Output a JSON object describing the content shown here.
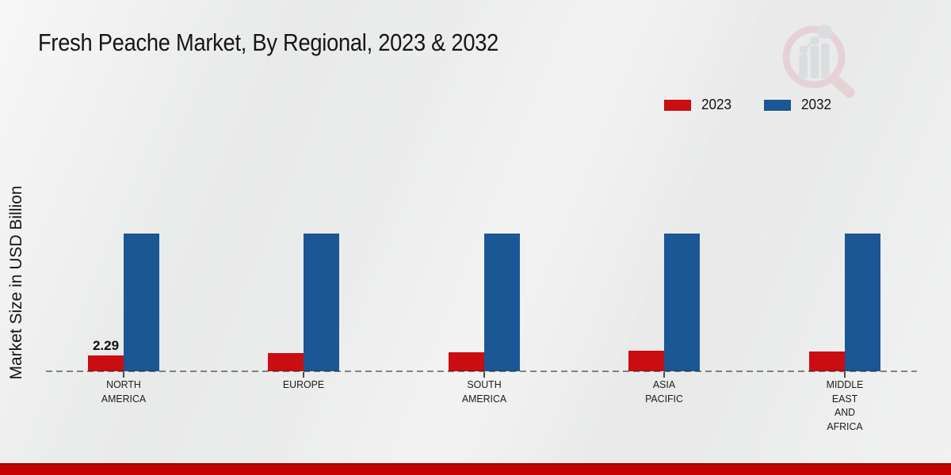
{
  "title": "Fresh Peache Market, By Regional, 2023 & 2032",
  "watermark": {
    "icon": "magnifier-bar-chart-logo"
  },
  "colors": {
    "series_2023": "#c90d11",
    "series_2032": "#1a5794",
    "footer_band": "#c20100",
    "footer_band_edge": "#8e1013",
    "baseline": "#6f6f6f"
  },
  "chart_data": {
    "type": "bar",
    "title": "Fresh Peache Market, By Regional, 2023 & 2032",
    "ylabel": "Market Size in USD Billion",
    "xlabel": "",
    "ylim": [
      0,
      20
    ],
    "grid": false,
    "legend_position": "top-right",
    "baseline_style": "dashed",
    "categories": [
      "NORTH AMERICA",
      "EUROPE",
      "SOUTH AMERICA",
      "ASIA PACIFIC",
      "MIDDLE EAST AND AFRICA"
    ],
    "category_lines": [
      [
        "NORTH",
        "AMERICA"
      ],
      [
        "EUROPE"
      ],
      [
        "SOUTH",
        "AMERICA"
      ],
      [
        "ASIA",
        "PACIFIC"
      ],
      [
        "MIDDLE",
        "EAST",
        "AND",
        "AFRICA"
      ]
    ],
    "series": [
      {
        "name": "2023",
        "color": "#c90d11",
        "values": [
          2.29,
          2.6,
          2.8,
          3.0,
          2.9
        ],
        "data_labels": [
          "2.29",
          null,
          null,
          null,
          null
        ]
      },
      {
        "name": "2032",
        "color": "#1a5794",
        "values": [
          20,
          20,
          20,
          20,
          20
        ],
        "data_labels": [
          null,
          null,
          null,
          null,
          null
        ]
      }
    ]
  }
}
